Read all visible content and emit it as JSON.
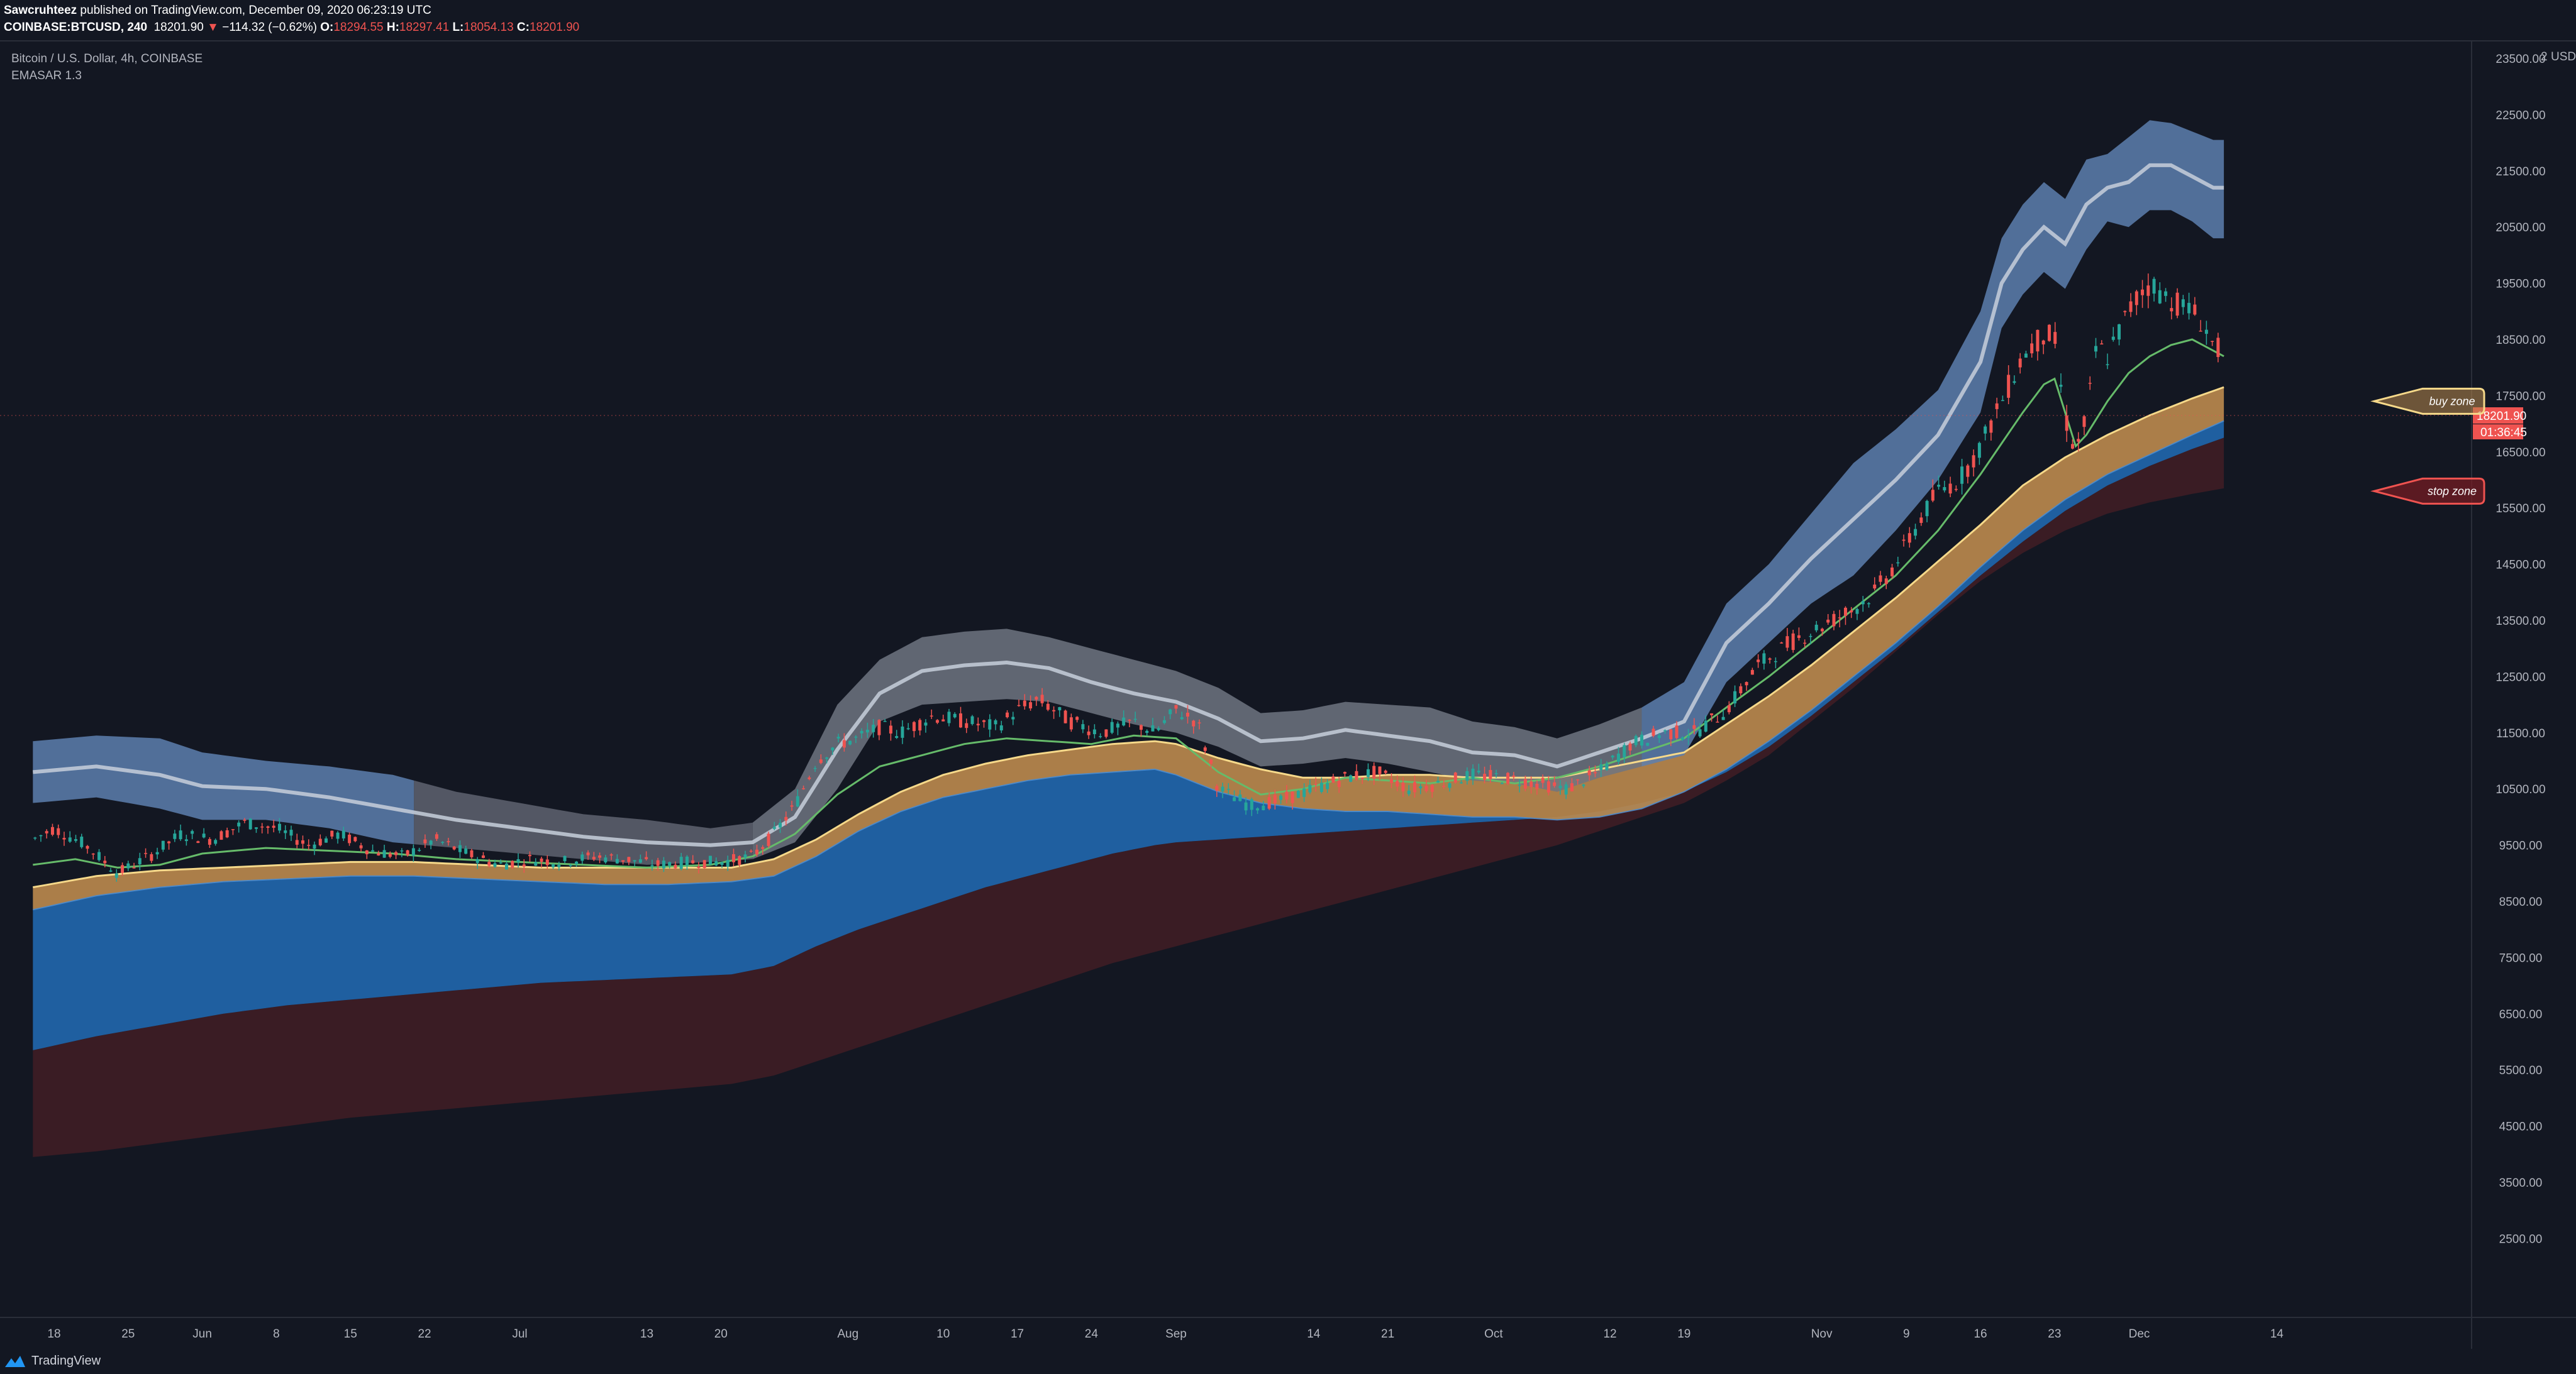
{
  "header": {
    "author": "Sawcruhteez",
    "published": " published on TradingView.com, December 09, 2020 06:23:19 UTC",
    "symbol": "COINBASE:BTCUSD, 240",
    "last": "18201.90",
    "change": "−114.32 (−0.62%)",
    "open_label": "O:",
    "open": "18294.55",
    "high_label": "H:",
    "high": "18297.41",
    "low_label": "L:",
    "low": "18054.13",
    "close_label": "C:",
    "close": "18201.90"
  },
  "legend": {
    "title": "Bitcoin / U.S. Dollar, 4h, COINBASE",
    "indicator": "EMASAR 1.3"
  },
  "footer": {
    "brand": "TradingView"
  },
  "price_axis": {
    "currency": "USD",
    "last_price_label": "18201.90",
    "countdown": "01:36:45"
  },
  "callouts": {
    "buy": "buy zone",
    "stop": "stop zone"
  },
  "colors": {
    "background": "#131722",
    "upper_band_blue": "#5d7fae",
    "upper_band_gray": "#6f7480",
    "orange_band": "#b8884d",
    "blue_band": "#1f5fa0",
    "maroon_band": "#3a1c24",
    "ema_green": "#66bb6a",
    "ema_yellow": "#f6d98a",
    "up_candle": "#26a69a",
    "down_candle": "#ef5350"
  },
  "chart_data": {
    "type": "line",
    "title": "Bitcoin / U.S. Dollar, 4h, COINBASE",
    "y_ticks": [
      "23500.00",
      "22500.00",
      "21500.00",
      "20500.00",
      "19500.00",
      "18500.00",
      "17500.00",
      "16500.00",
      "15500.00",
      "14500.00",
      "13500.00",
      "12500.00",
      "11500.00",
      "10500.00",
      "9500.00",
      "8500.00",
      "7500.00",
      "6500.00",
      "5500.00",
      "4500.00",
      "3500.00",
      "2500.00"
    ],
    "y_top_tick_partial": "2",
    "ylim": [
      2300,
      24400
    ],
    "x_ticks": [
      {
        "label": "18",
        "t": 0
      },
      {
        "label": "25",
        "t": 7
      },
      {
        "label": "Jun",
        "t": 14
      },
      {
        "label": "8",
        "t": 21
      },
      {
        "label": "15",
        "t": 28
      },
      {
        "label": "22",
        "t": 35
      },
      {
        "label": "Jul",
        "t": 44
      },
      {
        "label": "13",
        "t": 56
      },
      {
        "label": "20",
        "t": 63
      },
      {
        "label": "Aug",
        "t": 75
      },
      {
        "label": "10",
        "t": 84
      },
      {
        "label": "17",
        "t": 91
      },
      {
        "label": "24",
        "t": 98
      },
      {
        "label": "Sep",
        "t": 106
      },
      {
        "label": "14",
        "t": 119
      },
      {
        "label": "21",
        "t": 126
      },
      {
        "label": "Oct",
        "t": 136
      },
      {
        "label": "12",
        "t": 147
      },
      {
        "label": "19",
        "t": 154
      },
      {
        "label": "Nov",
        "t": 167
      },
      {
        "label": "9",
        "t": 175
      },
      {
        "label": "16",
        "t": 182
      },
      {
        "label": "23",
        "t": 189
      },
      {
        "label": "Dec",
        "t": 197
      },
      {
        "label": "14",
        "t": 210
      }
    ],
    "x_units": "days since May 18, 2020",
    "series": [
      {
        "name": "price",
        "t": [
          -2,
          0,
          3,
          6,
          9,
          12,
          15,
          18,
          21,
          24,
          27,
          30,
          33,
          36,
          39,
          42,
          45,
          48,
          51,
          54,
          57,
          60,
          63,
          66,
          68,
          70,
          72,
          74,
          76,
          78,
          80,
          83,
          86,
          89,
          91,
          93,
          96,
          99,
          102,
          104,
          106,
          108,
          110,
          113,
          116,
          119,
          122,
          125,
          128,
          131,
          134,
          137,
          140,
          143,
          146,
          149,
          152,
          155,
          158,
          161,
          164,
          167,
          170,
          172,
          174,
          176,
          178,
          180,
          182,
          184,
          186,
          188,
          189,
          190,
          191,
          192,
          193,
          194,
          195,
          196,
          197,
          198,
          200,
          202,
          203,
          204,
          205
        ],
        "v": [
          9600,
          9800,
          9500,
          9000,
          9300,
          9700,
          9600,
          9900,
          9800,
          9500,
          9700,
          9400,
          9300,
          9600,
          9350,
          9150,
          9250,
          9200,
          9300,
          9250,
          9150,
          9200,
          9200,
          9300,
          9700,
          10200,
          11000,
          11300,
          11400,
          11600,
          11500,
          11800,
          11700,
          11600,
          11900,
          12100,
          11700,
          11500,
          11700,
          11500,
          11900,
          11700,
          10500,
          10200,
          10300,
          10500,
          10700,
          10800,
          10500,
          10600,
          10750,
          10700,
          10600,
          10500,
          10800,
          11300,
          11500,
          11500,
          11900,
          12700,
          13100,
          13400,
          13700,
          14000,
          14500,
          15200,
          15800,
          16000,
          16600,
          17400,
          18200,
          18600,
          18500,
          17100,
          16500,
          17100,
          18400,
          18200,
          18600,
          19000,
          19300,
          19500,
          19200,
          19000,
          18800,
          18400,
          18200
        ]
      },
      {
        "name": "upper_band_top",
        "t": [
          -2,
          4,
          10,
          14,
          20,
          26,
          32,
          38,
          44,
          50,
          56,
          62,
          66,
          70,
          74,
          78,
          82,
          86,
          90,
          94,
          98,
          102,
          106,
          110,
          114,
          118,
          122,
          126,
          130,
          134,
          138,
          142,
          146,
          150,
          154,
          158,
          162,
          166,
          170,
          174,
          178,
          182,
          184,
          186,
          188,
          190,
          192,
          194,
          196,
          198,
          200,
          202,
          204
        ],
        "v": [
          11350,
          11450,
          11400,
          11150,
          11000,
          10900,
          10750,
          10450,
          10250,
          10050,
          9950,
          9800,
          9900,
          10500,
          12000,
          12800,
          13200,
          13300,
          13350,
          13200,
          13000,
          12800,
          12600,
          12300,
          11850,
          11900,
          12050,
          12000,
          11950,
          11700,
          11600,
          11400,
          11650,
          11950,
          12400,
          13800,
          14500,
          15400,
          16300,
          16900,
          17600,
          19000,
          20300,
          20900,
          21300,
          21000,
          21700,
          21800,
          22100,
          22400,
          22350,
          22200,
          22050
        ]
      },
      {
        "name": "upper_band_mid",
        "t": [
          -2,
          4,
          10,
          14,
          20,
          26,
          32,
          38,
          44,
          50,
          56,
          62,
          66,
          70,
          74,
          78,
          82,
          86,
          90,
          94,
          98,
          102,
          106,
          110,
          114,
          118,
          122,
          126,
          130,
          134,
          138,
          142,
          146,
          150,
          154,
          158,
          162,
          166,
          170,
          174,
          178,
          182,
          184,
          186,
          188,
          190,
          192,
          194,
          196,
          198,
          200,
          202,
          204
        ],
        "v": [
          10800,
          10900,
          10750,
          10550,
          10500,
          10350,
          10150,
          9950,
          9800,
          9650,
          9550,
          9500,
          9550,
          10000,
          11200,
          12200,
          12600,
          12700,
          12750,
          12650,
          12400,
          12200,
          12050,
          11750,
          11350,
          11400,
          11550,
          11450,
          11350,
          11150,
          11100,
          10900,
          11150,
          11400,
          11700,
          13100,
          13800,
          14600,
          15300,
          16000,
          16800,
          18100,
          19500,
          20100,
          20500,
          20200,
          20900,
          21200,
          21300,
          21600,
          21600,
          21400,
          21200
        ]
      },
      {
        "name": "upper_band_bottom",
        "t": [
          -2,
          4,
          10,
          14,
          20,
          26,
          32,
          38,
          44,
          50,
          56,
          62,
          66,
          70,
          74,
          78,
          82,
          86,
          90,
          94,
          98,
          102,
          106,
          110,
          114,
          118,
          122,
          126,
          130,
          134,
          138,
          142,
          146,
          150,
          154,
          158,
          162,
          166,
          170,
          174,
          178,
          182,
          184,
          186,
          188,
          190,
          192,
          194,
          196,
          198,
          200,
          202,
          204
        ],
        "v": [
          10250,
          10350,
          10150,
          9950,
          9950,
          9800,
          9550,
          9450,
          9350,
          9250,
          9150,
          9200,
          9250,
          9550,
          10500,
          11700,
          12000,
          12050,
          12100,
          12050,
          11850,
          11650,
          11500,
          11250,
          10900,
          10950,
          11050,
          10950,
          10800,
          10650,
          10600,
          10450,
          10700,
          10900,
          11100,
          12400,
          13100,
          13800,
          14300,
          15100,
          16000,
          17200,
          18700,
          19300,
          19700,
          19400,
          20100,
          20600,
          20500,
          20800,
          20800,
          20600,
          20300
        ]
      },
      {
        "name": "ema_green",
        "t": [
          -2,
          2,
          6,
          10,
          14,
          20,
          26,
          32,
          38,
          44,
          50,
          56,
          62,
          66,
          70,
          74,
          78,
          82,
          86,
          90,
          94,
          98,
          102,
          106,
          108,
          110,
          114,
          118,
          122,
          126,
          130,
          134,
          138,
          142,
          146,
          150,
          154,
          158,
          162,
          166,
          170,
          174,
          178,
          182,
          186,
          188,
          189,
          190,
          191,
          192,
          194,
          196,
          198,
          200,
          202,
          204,
          205
        ],
        "v": [
          9150,
          9250,
          9100,
          9150,
          9350,
          9450,
          9400,
          9350,
          9250,
          9200,
          9150,
          9100,
          9150,
          9300,
          9700,
          10400,
          10900,
          11100,
          11300,
          11400,
          11350,
          11300,
          11450,
          11400,
          11100,
          10800,
          10400,
          10500,
          10700,
          10650,
          10600,
          10700,
          10600,
          10700,
          10900,
          11150,
          11400,
          11950,
          12500,
          13100,
          13700,
          14300,
          15100,
          16100,
          17200,
          17700,
          17800,
          17200,
          16600,
          16800,
          17400,
          17900,
          18200,
          18400,
          18500,
          18300,
          18200
        ]
      },
      {
        "name": "ema_yellow",
        "t": [
          -2,
          4,
          10,
          16,
          22,
          28,
          34,
          40,
          46,
          52,
          58,
          64,
          68,
          72,
          76,
          80,
          84,
          88,
          92,
          96,
          100,
          104,
          106,
          110,
          114,
          118,
          122,
          126,
          130,
          134,
          138,
          142,
          146,
          150,
          154,
          158,
          162,
          166,
          170,
          174,
          178,
          182,
          186,
          190,
          194,
          198,
          202,
          205
        ],
        "v": [
          8750,
          8950,
          9050,
          9100,
          9150,
          9200,
          9200,
          9150,
          9100,
          9100,
          9100,
          9100,
          9250,
          9600,
          10050,
          10450,
          10750,
          10950,
          11100,
          11200,
          11300,
          11350,
          11300,
          11050,
          10850,
          10700,
          10700,
          10750,
          10750,
          10700,
          10700,
          10700,
          10850,
          11000,
          11150,
          11650,
          12150,
          12700,
          13300,
          13900,
          14550,
          15200,
          15900,
          16400,
          16800,
          17150,
          17450,
          17650
        ]
      },
      {
        "name": "orange_band_bottom",
        "t": [
          -2,
          4,
          10,
          16,
          22,
          28,
          34,
          40,
          46,
          52,
          58,
          64,
          68,
          72,
          76,
          80,
          84,
          88,
          92,
          96,
          100,
          104,
          106,
          110,
          114,
          118,
          122,
          126,
          130,
          134,
          138,
          142,
          146,
          150,
          154,
          158,
          162,
          166,
          170,
          174,
          178,
          182,
          186,
          190,
          194,
          198,
          202,
          205
        ],
        "v": [
          8350,
          8600,
          8750,
          8850,
          8900,
          8950,
          8950,
          8900,
          8850,
          8800,
          8800,
          8850,
          8950,
          9300,
          9750,
          10100,
          10350,
          10500,
          10650,
          10750,
          10800,
          10850,
          10750,
          10450,
          10250,
          10150,
          10100,
          10100,
          10050,
          10000,
          10000,
          9950,
          10000,
          10150,
          10450,
          10850,
          11350,
          11900,
          12500,
          13100,
          13750,
          14450,
          15100,
          15650,
          16100,
          16450,
          16800,
          17050
        ]
      },
      {
        "name": "blue_band_bottom",
        "t": [
          -2,
          4,
          10,
          16,
          22,
          28,
          34,
          40,
          46,
          52,
          58,
          64,
          68,
          72,
          76,
          80,
          84,
          88,
          92,
          96,
          100,
          104,
          106,
          110,
          114,
          118,
          122,
          126,
          130,
          134,
          138,
          142,
          146,
          150,
          154,
          158,
          162,
          166,
          170,
          174,
          178,
          182,
          186,
          190,
          194,
          198,
          202,
          205
        ],
        "v": [
          5850,
          6100,
          6300,
          6500,
          6650,
          6750,
          6850,
          6950,
          7050,
          7100,
          7150,
          7200,
          7350,
          7700,
          8000,
          8250,
          8500,
          8750,
          8950,
          9150,
          9350,
          9500,
          9550,
          9600,
          9650,
          9700,
          9750,
          9800,
          9850,
          9900,
          9950,
          10000,
          10100,
          10250,
          10450,
          10800,
          11250,
          11800,
          12400,
          13000,
          13650,
          14300,
          14900,
          15450,
          15900,
          16250,
          16550,
          16750
        ]
      },
      {
        "name": "maroon_band_bottom",
        "t": [
          -2,
          4,
          10,
          16,
          22,
          28,
          34,
          40,
          46,
          52,
          58,
          64,
          68,
          72,
          76,
          80,
          84,
          88,
          92,
          96,
          100,
          104,
          106,
          110,
          114,
          118,
          122,
          126,
          130,
          134,
          138,
          142,
          146,
          150,
          154,
          158,
          162,
          166,
          170,
          174,
          178,
          182,
          186,
          190,
          194,
          198,
          202,
          205
        ],
        "v": [
          3950,
          4050,
          4200,
          4350,
          4500,
          4650,
          4750,
          4850,
          4950,
          5050,
          5150,
          5250,
          5400,
          5650,
          5900,
          6150,
          6400,
          6650,
          6900,
          7150,
          7400,
          7600,
          7700,
          7900,
          8100,
          8300,
          8500,
          8700,
          8900,
          9100,
          9300,
          9500,
          9750,
          10000,
          10250,
          10650,
          11100,
          11700,
          12300,
          12950,
          13600,
          14200,
          14700,
          15100,
          15400,
          15600,
          15750,
          15850
        ]
      }
    ],
    "annotations": [
      {
        "text": "buy zone",
        "price": 17400
      },
      {
        "text": "stop zone",
        "price": 15800
      }
    ]
  }
}
